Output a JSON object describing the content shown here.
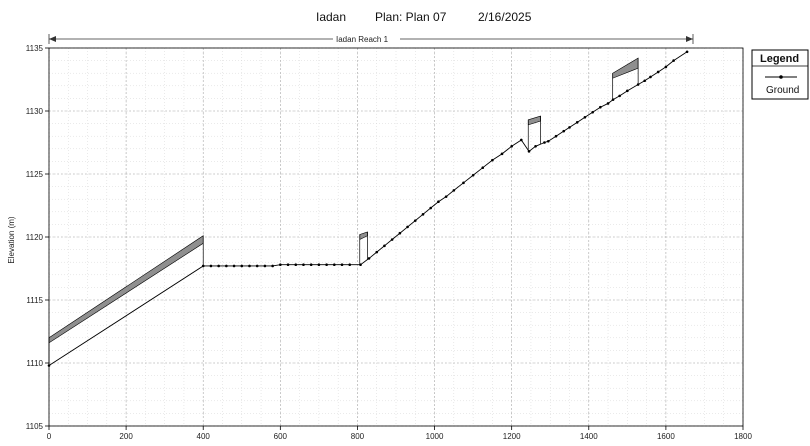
{
  "title": {
    "reach_name": "Iadan",
    "plan": "Plan: Plan 07",
    "date": "2/16/2025"
  },
  "reach_label": "Iadan Reach 1",
  "legend": {
    "title": "Legend",
    "entries": [
      "Ground"
    ]
  },
  "chart_data": {
    "type": "line",
    "title": "Iadan     Plan: Plan 07     2/16/2025",
    "xlabel": "",
    "ylabel": "Elevation (m)",
    "xlim": [
      0,
      1800
    ],
    "ylim": [
      1105,
      1135
    ],
    "x_ticks": [
      0,
      200,
      400,
      600,
      800,
      1000,
      1200,
      1400,
      1600,
      1800
    ],
    "y_ticks": [
      1105,
      1110,
      1115,
      1120,
      1125,
      1130,
      1135
    ],
    "grid": true,
    "legend_position": "right",
    "series": [
      {
        "name": "Ground",
        "color": "#000000",
        "points": [
          [
            0,
            1109.8
          ],
          [
            400,
            1117.7
          ],
          [
            420,
            1117.7
          ],
          [
            440,
            1117.7
          ],
          [
            460,
            1117.7
          ],
          [
            480,
            1117.7
          ],
          [
            500,
            1117.7
          ],
          [
            520,
            1117.7
          ],
          [
            540,
            1117.7
          ],
          [
            560,
            1117.7
          ],
          [
            580,
            1117.7
          ],
          [
            600,
            1117.8
          ],
          [
            620,
            1117.8
          ],
          [
            640,
            1117.8
          ],
          [
            660,
            1117.8
          ],
          [
            680,
            1117.8
          ],
          [
            700,
            1117.8
          ],
          [
            720,
            1117.8
          ],
          [
            740,
            1117.8
          ],
          [
            760,
            1117.8
          ],
          [
            780,
            1117.8
          ],
          [
            808,
            1117.8
          ],
          [
            830,
            1118.3
          ],
          [
            850,
            1118.8
          ],
          [
            870,
            1119.3
          ],
          [
            890,
            1119.8
          ],
          [
            910,
            1120.3
          ],
          [
            930,
            1120.8
          ],
          [
            950,
            1121.3
          ],
          [
            970,
            1121.8
          ],
          [
            990,
            1122.3
          ],
          [
            1010,
            1122.8
          ],
          [
            1030,
            1123.2
          ],
          [
            1050,
            1123.7
          ],
          [
            1075,
            1124.3
          ],
          [
            1100,
            1124.9
          ],
          [
            1125,
            1125.5
          ],
          [
            1150,
            1126.1
          ],
          [
            1175,
            1126.6
          ],
          [
            1200,
            1127.2
          ],
          [
            1225,
            1127.7
          ],
          [
            1245,
            1126.8
          ],
          [
            1262,
            1127.2
          ],
          [
            1285,
            1127.5
          ],
          [
            1295,
            1127.6
          ],
          [
            1315,
            1128.0
          ],
          [
            1335,
            1128.4
          ],
          [
            1350,
            1128.7
          ],
          [
            1370,
            1129.1
          ],
          [
            1390,
            1129.5
          ],
          [
            1410,
            1129.9
          ],
          [
            1430,
            1130.3
          ],
          [
            1450,
            1130.6
          ],
          [
            1463,
            1130.9
          ],
          [
            1480,
            1131.2
          ],
          [
            1500,
            1131.6
          ],
          [
            1528,
            1132.1
          ],
          [
            1545,
            1132.4
          ],
          [
            1560,
            1132.7
          ],
          [
            1580,
            1133.1
          ],
          [
            1600,
            1133.5
          ],
          [
            1620,
            1134.0
          ],
          [
            1655,
            1134.7
          ]
        ]
      }
    ],
    "water_surface_bands": [
      {
        "x_start": 0,
        "x_end": 400,
        "lower": [
          1111.6,
          1119.5
        ],
        "upper": [
          1112.0,
          1120.1
        ]
      },
      {
        "x_start": 806,
        "x_end": 826,
        "lower": [
          1119.8,
          1120.1
        ],
        "upper": [
          1120.2,
          1120.4
        ]
      },
      {
        "x_start": 1243,
        "x_end": 1275,
        "lower": [
          1128.9,
          1129.2
        ],
        "upper": [
          1129.3,
          1129.6
        ]
      },
      {
        "x_start": 1462,
        "x_end": 1528,
        "lower": [
          1132.6,
          1133.4
        ],
        "upper": [
          1133.0,
          1134.2
        ]
      }
    ]
  }
}
